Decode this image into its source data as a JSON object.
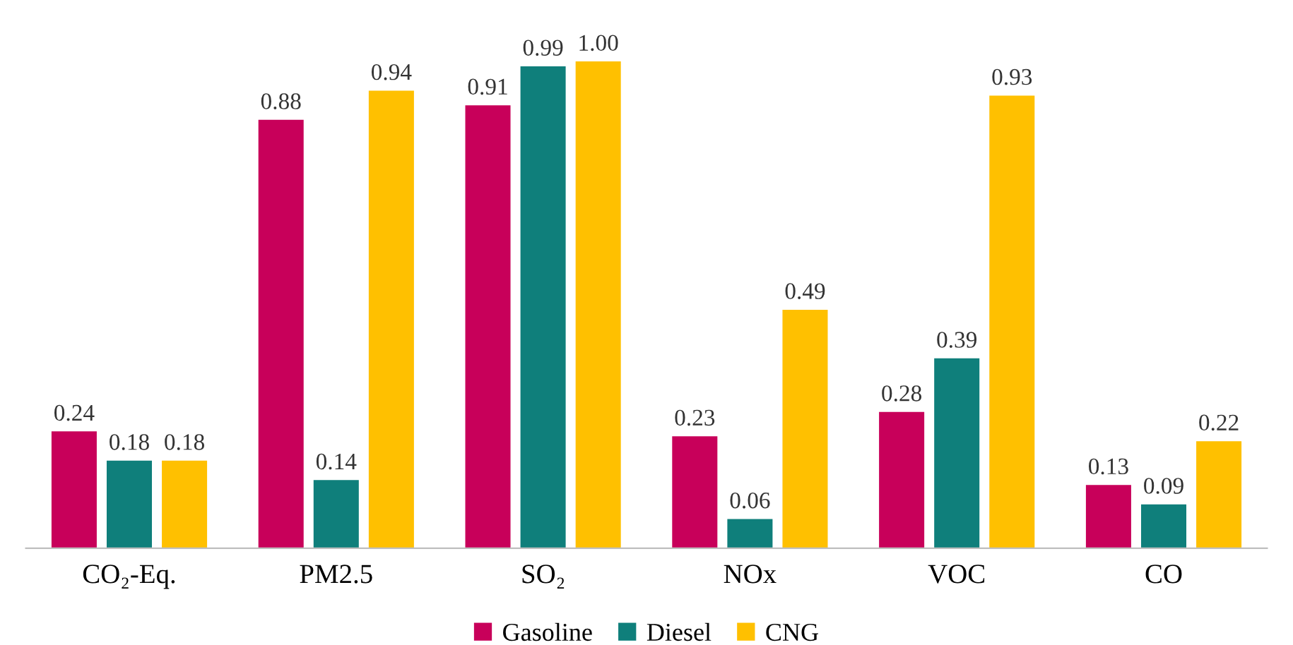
{
  "chart_data": {
    "type": "bar",
    "categories": [
      "CO₂-Eq.",
      "PM2.5",
      "SO₂",
      "NOx",
      "VOC",
      "CO"
    ],
    "series": [
      {
        "name": "Gasoline",
        "color": "#c8005a",
        "values": [
          0.24,
          0.88,
          0.91,
          0.23,
          0.28,
          0.13
        ],
        "value_labels": [
          "0.24",
          "0.88",
          "0.91",
          "0.23",
          "0.28",
          "0.13"
        ]
      },
      {
        "name": "Diesel",
        "color": "#0f7f7b",
        "values": [
          0.18,
          0.14,
          0.99,
          0.06,
          0.39,
          0.09
        ],
        "value_labels": [
          "0.18",
          "0.14",
          "0.99",
          "0.06",
          "0.39",
          "0.09"
        ]
      },
      {
        "name": "CNG",
        "color": "#ffc000",
        "values": [
          0.18,
          0.94,
          1.0,
          0.49,
          0.93,
          0.22
        ],
        "value_labels": [
          "0.18",
          "0.94",
          "1.00",
          "0.49",
          "0.93",
          "0.22"
        ]
      }
    ],
    "grid": false,
    "legend": "bottom"
  }
}
